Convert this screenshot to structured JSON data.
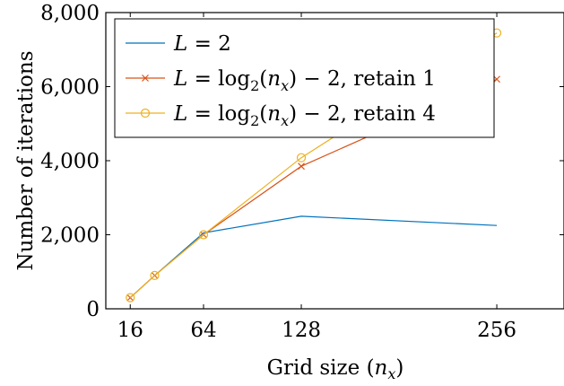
{
  "chart_data": {
    "type": "line",
    "xlabel": "Grid size (n_x)",
    "xlabel_parts": {
      "text": "Grid size (",
      "var": "n",
      "sub": "x",
      "close": ")"
    },
    "ylabel": "Number of iterations",
    "xlim": [
      0,
      300
    ],
    "ylim": [
      0,
      8000
    ],
    "xticks": [
      16,
      64,
      128,
      256
    ],
    "xtick_labels": [
      "16",
      "64",
      "128",
      "256"
    ],
    "yticks": [
      0,
      2000,
      4000,
      6000,
      8000
    ],
    "ytick_labels": [
      "0",
      "2,000",
      "4,000",
      "6,000",
      "8,000"
    ],
    "grid": false,
    "legend_position": "top-left",
    "series": [
      {
        "name": "L = 2",
        "legend_parts": {
          "it": "L",
          "rest": " = 2"
        },
        "color": "#0072bd",
        "marker": "none",
        "x": [
          16,
          32,
          64,
          128,
          256
        ],
        "y": [
          300,
          900,
          2050,
          2500,
          2250
        ]
      },
      {
        "name": "L = log2(nx) − 2, retain 1",
        "legend_parts": {
          "it": "L",
          "mid": " = log",
          "sub2": "2",
          "open": "(",
          "var": "n",
          "sub": "x",
          "tail": ") − 2, retain 1"
        },
        "color": "#d95319",
        "marker": "x",
        "x": [
          16,
          32,
          64,
          128,
          256
        ],
        "y": [
          300,
          900,
          2000,
          3850,
          6200
        ]
      },
      {
        "name": "L = log2(nx) − 2, retain 4",
        "legend_parts": {
          "it": "L",
          "mid": " = log",
          "sub2": "2",
          "open": "(",
          "var": "n",
          "sub": "x",
          "tail": ") − 2, retain 4"
        },
        "color": "#edb120",
        "marker": "o",
        "x": [
          16,
          32,
          64,
          128,
          256
        ],
        "y": [
          300,
          900,
          2000,
          4080,
          7450
        ]
      }
    ]
  }
}
